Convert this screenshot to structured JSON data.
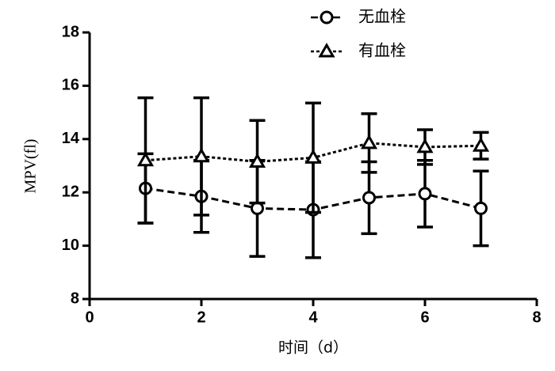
{
  "chart_data": {
    "type": "line",
    "x_label": "时间（d）",
    "y_label": "MPV(fl)",
    "x": [
      1,
      2,
      3,
      4,
      5,
      6,
      7
    ],
    "series": [
      {
        "name": "无血栓",
        "color": "#000000",
        "marker": "circle",
        "dash": "dashed",
        "values": [
          12.15,
          11.85,
          11.4,
          11.35,
          11.8,
          11.95,
          11.4
        ],
        "errors": [
          1.3,
          1.35,
          1.8,
          1.8,
          1.35,
          1.25,
          1.4
        ]
      },
      {
        "name": "有血栓",
        "color": "#000000",
        "marker": "triangle",
        "dash": "dotted",
        "values": [
          13.2,
          13.35,
          13.15,
          13.3,
          13.85,
          13.7,
          13.75
        ],
        "errors": [
          2.35,
          2.2,
          1.55,
          2.05,
          1.1,
          0.65,
          0.5
        ]
      }
    ],
    "xlim": [
      0,
      8
    ],
    "xticks": [
      0,
      2,
      4,
      6,
      8
    ],
    "ylim": [
      8,
      18
    ],
    "yticks": [
      8,
      10,
      12,
      14,
      16,
      18
    ],
    "legend": "top"
  }
}
